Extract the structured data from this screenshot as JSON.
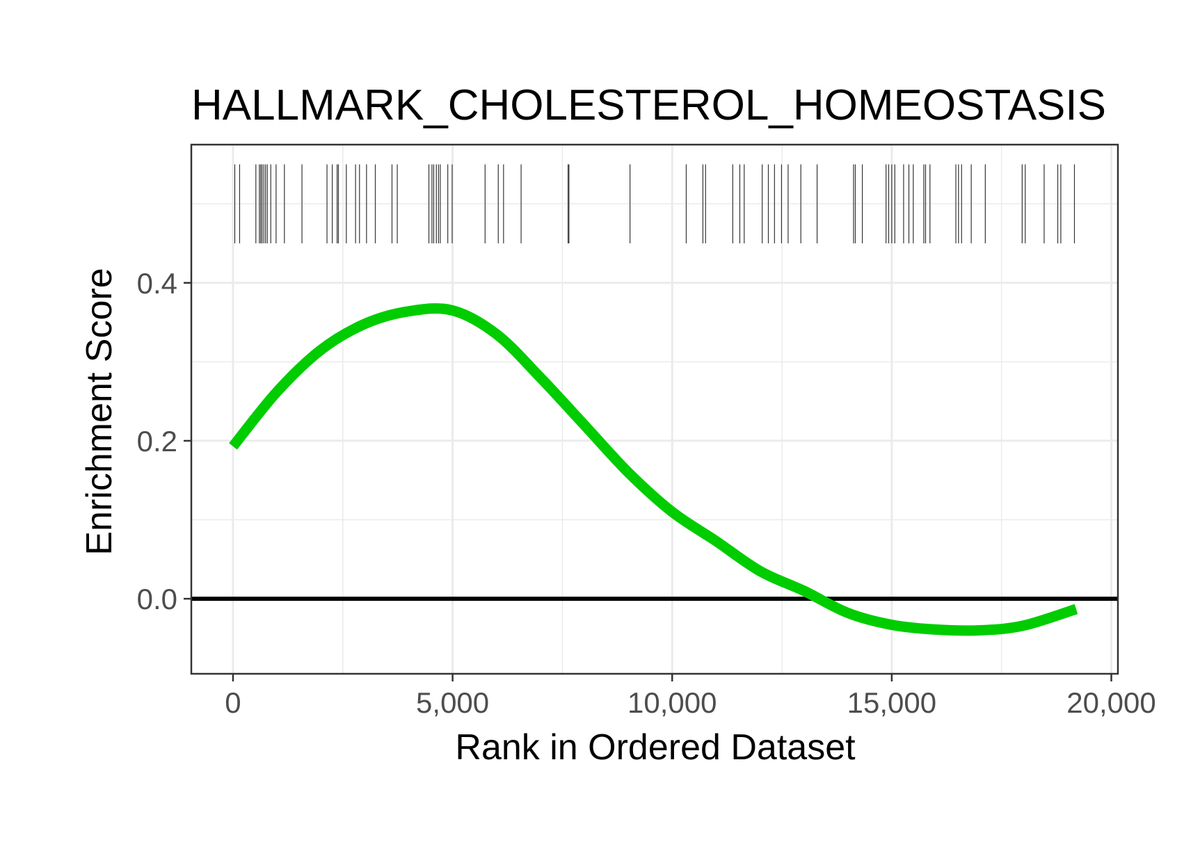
{
  "chart_data": {
    "type": "line",
    "title": "HALLMARK_CHOLESTEROL_HOMEOSTASIS",
    "xlabel": "Rank in Ordered Dataset",
    "ylabel": "Enrichment Score",
    "xlim": [
      -950,
      20150
    ],
    "ylim": [
      -0.095,
      0.575
    ],
    "x_ticks": [
      {
        "value": 0,
        "label": "0"
      },
      {
        "value": 5000,
        "label": "5,000"
      },
      {
        "value": 10000,
        "label": "10,000"
      },
      {
        "value": 15000,
        "label": "15,000"
      },
      {
        "value": 20000,
        "label": "20,000"
      }
    ],
    "y_ticks": [
      {
        "value": 0.0,
        "label": "0.0"
      },
      {
        "value": 0.2,
        "label": "0.2"
      },
      {
        "value": 0.4,
        "label": "0.4"
      }
    ],
    "x_minor_grid": [
      2500,
      7500,
      12500,
      17500
    ],
    "y_minor_grid": [
      0.1,
      0.3,
      0.5
    ],
    "grid": true,
    "zero_line": 0,
    "colors": {
      "curve": "#00cc00",
      "ticks": "#333333",
      "grid": "#ebebeb",
      "zero_line": "#000000",
      "panel_border": "#333333"
    },
    "series": [
      {
        "x": [
          0,
          1000,
          2000,
          3000,
          4000,
          5000,
          6000,
          7000,
          8000,
          9000,
          10000,
          11000,
          12000,
          13000,
          14000,
          15000,
          16000,
          17000,
          18000,
          19200
        ],
        "y": [
          0.193,
          0.262,
          0.315,
          0.348,
          0.364,
          0.365,
          0.335,
          0.28,
          0.22,
          0.16,
          0.11,
          0.073,
          0.035,
          0.01,
          -0.018,
          -0.033,
          -0.039,
          -0.04,
          -0.034,
          -0.013
        ]
      }
    ],
    "gene_hits": {
      "y_range": [
        0.45,
        0.55
      ],
      "x": [
        40,
        150,
        520,
        600,
        630,
        660,
        700,
        740,
        780,
        860,
        980,
        1170,
        1570,
        2140,
        2260,
        2370,
        2400,
        2580,
        2790,
        2880,
        3040,
        3240,
        3620,
        3740,
        4460,
        4530,
        4570,
        4630,
        4680,
        4720,
        4890,
        4990,
        5740,
        6040,
        6160,
        6560,
        7630,
        7650,
        9040,
        10320,
        10700,
        10760,
        11380,
        11540,
        11640,
        12050,
        12190,
        12330,
        12490,
        12640,
        12930,
        13300,
        14130,
        14170,
        14330,
        14870,
        14930,
        15000,
        15070,
        15270,
        15390,
        15490,
        15730,
        15770,
        15870,
        16460,
        16520,
        16590,
        16810,
        17130,
        17970,
        18040,
        18470,
        18780,
        18850,
        19160
      ]
    }
  }
}
